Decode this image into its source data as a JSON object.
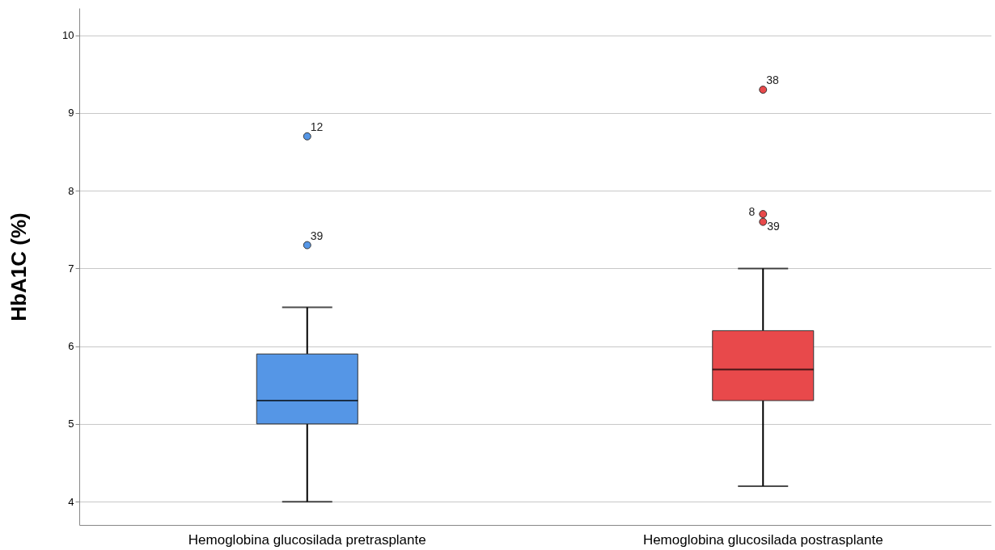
{
  "chart_data": {
    "type": "box",
    "ylabel": "HbA1C (%)",
    "categories": [
      "Hemoglobina glucosilada pretrasplante",
      "Hemoglobina glucosilada postrasplante"
    ],
    "colors": [
      "#5596e6",
      "#e8494b"
    ],
    "boxes": [
      {
        "low": 4.0,
        "q1": 5.0,
        "median": 5.3,
        "q3": 5.9,
        "high": 6.5
      },
      {
        "low": 4.2,
        "q1": 5.3,
        "median": 5.7,
        "q3": 6.2,
        "high": 7.0
      }
    ],
    "series": [
      {
        "type": "scatter",
        "color": "#5596e6",
        "x": [
          "Hemoglobina glucosilada pretrasplante",
          "Hemoglobina glucosilada pretrasplante"
        ],
        "values": [
          7.3,
          8.7
        ]
      },
      {
        "type": "scatter",
        "color": "#e8494b",
        "x": [
          "Hemoglobina glucosilada postrasplante",
          "Hemoglobina glucosilada postrasplante",
          "Hemoglobina glucosilada postrasplante"
        ],
        "values": [
          7.6,
          7.7,
          9.3
        ]
      }
    ],
    "annotations": [
      {
        "text": "12",
        "x": "Hemoglobina glucosilada pretrasplante",
        "y": 8.7
      },
      {
        "text": "39",
        "x": "Hemoglobina glucosilada pretrasplante",
        "y": 7.3
      },
      {
        "text": "38",
        "x": "Hemoglobina glucosilada postrasplante",
        "y": 9.3
      },
      {
        "text": "8",
        "x": "Hemoglobina glucosilada postrasplante",
        "y": 7.7
      },
      {
        "text": "39",
        "x": "Hemoglobina glucosilada postrasplante",
        "y": 7.6
      }
    ],
    "ylim": [
      3.7,
      10.35
    ],
    "yticks": [
      4,
      5,
      6,
      7,
      8,
      9,
      10
    ],
    "grid": "y"
  }
}
